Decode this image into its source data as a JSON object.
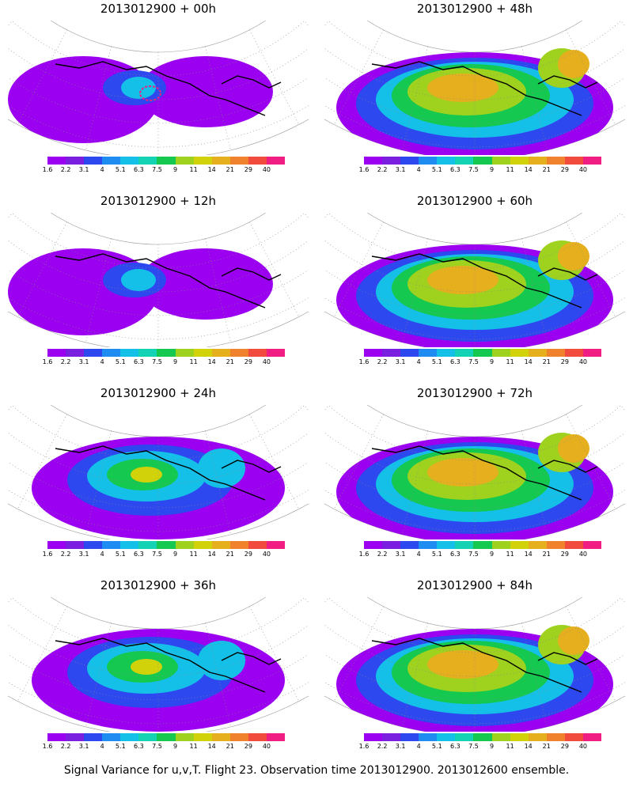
{
  "panels": [
    {
      "title": "2013012900 + 00h",
      "level": 0
    },
    {
      "title": "2013012900 + 48h",
      "level": 4
    },
    {
      "title": "2013012900 + 12h",
      "level": 1
    },
    {
      "title": "2013012900 + 60h",
      "level": 5
    },
    {
      "title": "2013012900 + 24h",
      "level": 2
    },
    {
      "title": "2013012900 + 72h",
      "level": 6
    },
    {
      "title": "2013012900 + 36h",
      "level": 3
    },
    {
      "title": "2013012900 + 84h",
      "level": 7
    }
  ],
  "colorbar": {
    "colors": [
      "#9b00f0",
      "#7a1ee0",
      "#2e48f0",
      "#1e8cf0",
      "#14c0e8",
      "#14d2b4",
      "#14c850",
      "#9ed21e",
      "#d2d20a",
      "#e6af1e",
      "#f0822d",
      "#f04b3c",
      "#f01e82"
    ],
    "ticks": [
      "1.6",
      "2.2",
      "3.1",
      "4",
      "5.1",
      "6.3",
      "7.5",
      "9",
      "11",
      "14",
      "21",
      "29",
      "40"
    ]
  },
  "footer": "Signal Variance for u,v,T. Flight 23. Observation time 2013012900. 2013012600 ensemble."
}
